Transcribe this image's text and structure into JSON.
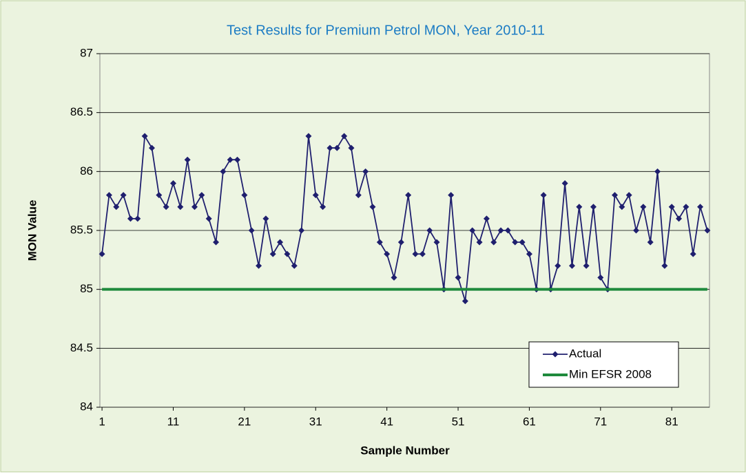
{
  "chart_data": {
    "type": "line",
    "title": "Test Results for Premium Petrol MON, Year 2010-11",
    "x_label": "Sample Number",
    "y_label": "MON Value",
    "x": [
      1,
      2,
      3,
      4,
      5,
      6,
      7,
      8,
      9,
      10,
      11,
      12,
      13,
      14,
      15,
      16,
      17,
      18,
      19,
      20,
      21,
      22,
      23,
      24,
      25,
      26,
      27,
      28,
      29,
      30,
      31,
      32,
      33,
      34,
      35,
      36,
      37,
      38,
      39,
      40,
      41,
      42,
      43,
      44,
      45,
      46,
      47,
      48,
      49,
      50,
      51,
      52,
      53,
      54,
      55,
      56,
      57,
      58,
      59,
      60,
      61,
      62,
      63,
      64,
      65,
      66,
      67,
      68,
      69,
      70,
      71,
      72,
      73,
      74,
      75,
      76,
      77,
      78,
      79,
      80,
      81,
      82,
      83,
      84,
      85,
      86
    ],
    "series": [
      {
        "name": "Actual",
        "color": "#1f1f6e",
        "marker": "diamond",
        "values": [
          85.3,
          85.8,
          85.7,
          85.8,
          85.6,
          85.6,
          86.3,
          86.2,
          85.8,
          85.7,
          85.9,
          85.7,
          86.1,
          85.7,
          85.8,
          85.6,
          85.4,
          86.0,
          86.1,
          86.1,
          85.8,
          85.5,
          85.2,
          85.6,
          85.3,
          85.4,
          85.3,
          85.2,
          85.5,
          86.3,
          85.8,
          85.7,
          86.2,
          86.2,
          86.3,
          86.2,
          85.8,
          86.0,
          85.7,
          85.4,
          85.3,
          85.1,
          85.4,
          85.8,
          85.3,
          85.3,
          85.5,
          85.4,
          85.0,
          85.8,
          85.1,
          84.9,
          85.5,
          85.4,
          85.6,
          85.4,
          85.5,
          85.5,
          85.4,
          85.4,
          85.3,
          85.0,
          85.8,
          85.0,
          85.2,
          85.9,
          85.2,
          85.7,
          85.2,
          85.7,
          85.1,
          85.0,
          85.8,
          85.7,
          85.8,
          85.5,
          85.7,
          85.4,
          86.0,
          85.2,
          85.7,
          85.6,
          85.7,
          85.3,
          85.7,
          85.5
        ]
      },
      {
        "name": "Min EFSR 2008",
        "color": "#1e8a3c",
        "marker": "none",
        "values": [
          85,
          85,
          85,
          85,
          85,
          85,
          85,
          85,
          85,
          85,
          85,
          85,
          85,
          85,
          85,
          85,
          85,
          85,
          85,
          85,
          85,
          85,
          85,
          85,
          85,
          85,
          85,
          85,
          85,
          85,
          85,
          85,
          85,
          85,
          85,
          85,
          85,
          85,
          85,
          85,
          85,
          85,
          85,
          85,
          85,
          85,
          85,
          85,
          85,
          85,
          85,
          85,
          85,
          85,
          85,
          85,
          85,
          85,
          85,
          85,
          85,
          85,
          85,
          85,
          85,
          85,
          85,
          85,
          85,
          85,
          85,
          85,
          85,
          85,
          85,
          85,
          85,
          85,
          85,
          85,
          85,
          85,
          85,
          85,
          85,
          85
        ]
      }
    ],
    "xlim": [
      0.7,
      86.3
    ],
    "xticks": [
      1,
      11,
      21,
      31,
      41,
      51,
      61,
      71,
      81
    ],
    "ylim": [
      84,
      87
    ],
    "yticks": [
      84,
      84.5,
      85,
      85.5,
      86,
      86.5,
      87
    ],
    "grid": true,
    "legend": "lower right"
  }
}
